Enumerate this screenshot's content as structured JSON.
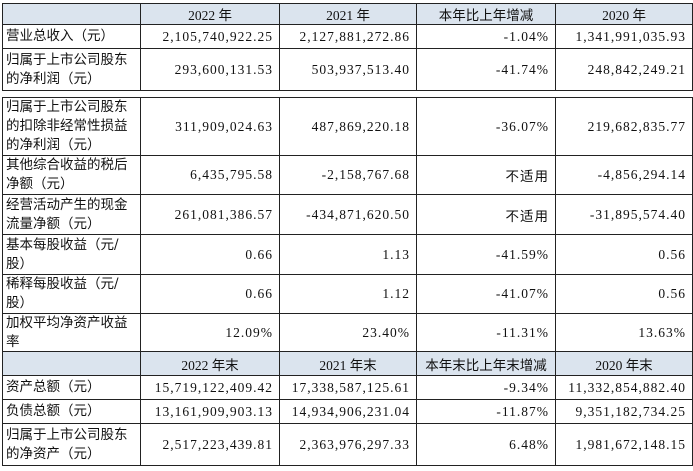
{
  "sections": [
    {
      "header": [
        "2022 年",
        "2021 年",
        "本年比上年增减",
        "2020 年"
      ],
      "rows": [
        [
          "营业总收入（元）",
          "2,105,740,922.25",
          "2,127,881,272.86",
          "-1.04%",
          "1,341,991,035.93"
        ],
        [
          "归属于上市公司股东的净利润（元）",
          "293,600,131.53",
          "503,937,513.40",
          "-41.74%",
          "248,842,249.21"
        ]
      ]
    },
    {
      "rows": [
        [
          "归属于上市公司股东的扣除非经常性损益的净利润（元）",
          "311,909,024.63",
          "487,869,220.18",
          "-36.07%",
          "219,682,835.77"
        ],
        [
          "其他综合收益的税后净额（元）",
          "6,435,795.58",
          "-2,158,767.68",
          "不适用",
          "-4,856,294.14"
        ],
        [
          "经营活动产生的现金流量净额（元）",
          "261,081,386.57",
          "-434,871,620.50",
          "不适用",
          "-31,895,574.40"
        ],
        [
          "基本每股收益（元/股）",
          "0.66",
          "1.13",
          "-41.59%",
          "0.56"
        ],
        [
          "稀释每股收益（元/股）",
          "0.66",
          "1.12",
          "-41.07%",
          "0.56"
        ],
        [
          "加权平均净资产收益率",
          "12.09%",
          "23.40%",
          "-11.31%",
          "13.63%"
        ]
      ]
    },
    {
      "header": [
        "2022 年末",
        "2021 年末",
        "本年末比上年末增减",
        "2020 年末"
      ],
      "rows": [
        [
          "资产总额（元）",
          "15,719,122,409.42",
          "17,338,587,125.61",
          "-9.34%",
          "11,332,854,882.40"
        ],
        [
          "负债总额（元）",
          "13,161,909,903.13",
          "14,934,906,231.04",
          "-11.87%",
          "9,351,182,734.25"
        ],
        [
          "归属于上市公司股东的净资产（元）",
          "2,517,223,439.81",
          "2,363,976,297.33",
          "6.48%",
          "1,981,672,148.15"
        ]
      ]
    }
  ]
}
